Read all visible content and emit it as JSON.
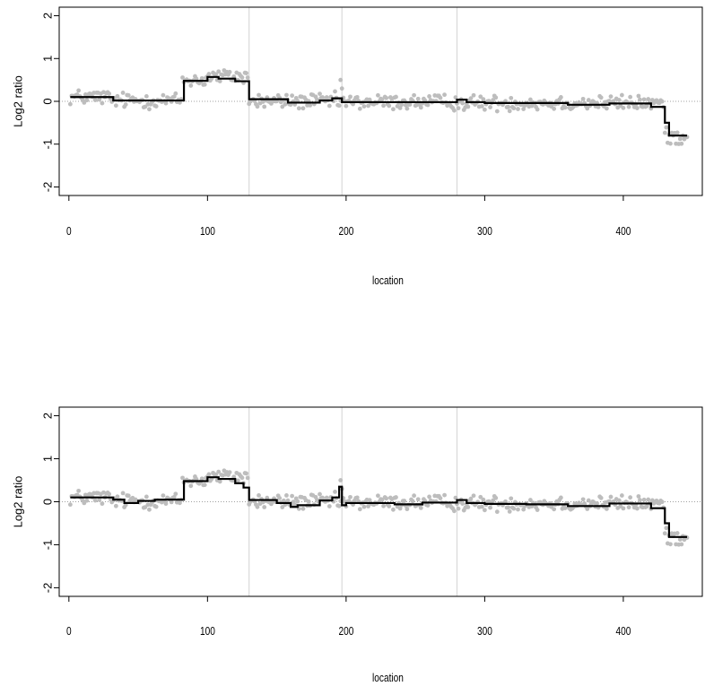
{
  "colors": {
    "points": "#bdbdbd",
    "segments": "#000000",
    "boundaries": "#d9d9d9",
    "zero_line": "#a0a0a0",
    "axes": "#000000"
  },
  "chart_data": [
    {
      "type": "scatter",
      "title": "",
      "xlabel": "location",
      "ylabel": "Log2 ratio",
      "xlim": [
        -7,
        457
      ],
      "ylim": [
        -2.2,
        2.2
      ],
      "xticks": [
        0,
        100,
        200,
        300,
        400
      ],
      "yticks": [
        -2,
        -1,
        0,
        1,
        2
      ],
      "grid": false,
      "n_points": 446,
      "chromosome_boundaries": [
        130,
        197,
        280
      ],
      "reference_line": 0,
      "point_baseline": [
        {
          "x0": 1,
          "x1": 30,
          "y": 0.1
        },
        {
          "x0": 30,
          "x1": 82,
          "y": 0.02
        },
        {
          "x0": 82,
          "x1": 100,
          "y": 0.5
        },
        {
          "x0": 100,
          "x1": 130,
          "y": 0.58
        },
        {
          "x0": 130,
          "x1": 197,
          "y": 0.0
        },
        {
          "x0": 197,
          "x1": 280,
          "y": -0.02
        },
        {
          "x0": 280,
          "x1": 430,
          "y": -0.04
        },
        {
          "x0": 430,
          "x1": 446,
          "y": -0.82
        }
      ],
      "highlight_points": [
        [
          196,
          0.5
        ],
        [
          197,
          0.3
        ]
      ],
      "segments": [
        {
          "x0": 1,
          "x1": 32,
          "y": 0.1
        },
        {
          "x0": 32,
          "x1": 83,
          "y": 0.02
        },
        {
          "x0": 83,
          "x1": 100,
          "y": 0.48
        },
        {
          "x0": 100,
          "x1": 108,
          "y": 0.57
        },
        {
          "x0": 108,
          "x1": 120,
          "y": 0.53
        },
        {
          "x0": 120,
          "x1": 130,
          "y": 0.47
        },
        {
          "x0": 130,
          "x1": 158,
          "y": 0.05
        },
        {
          "x0": 158,
          "x1": 181,
          "y": -0.03
        },
        {
          "x0": 181,
          "x1": 190,
          "y": 0.02
        },
        {
          "x0": 190,
          "x1": 197,
          "y": 0.07
        },
        {
          "x0": 197,
          "x1": 280,
          "y": -0.02
        },
        {
          "x0": 280,
          "x1": 287,
          "y": 0.04
        },
        {
          "x0": 287,
          "x1": 300,
          "y": -0.02
        },
        {
          "x0": 300,
          "x1": 360,
          "y": -0.04
        },
        {
          "x0": 360,
          "x1": 390,
          "y": -0.08
        },
        {
          "x0": 390,
          "x1": 420,
          "y": -0.05
        },
        {
          "x0": 420,
          "x1": 430,
          "y": -0.13
        },
        {
          "x0": 430,
          "x1": 433,
          "y": -0.5
        },
        {
          "x0": 433,
          "x1": 446,
          "y": -0.8
        }
      ]
    },
    {
      "type": "scatter",
      "title": "",
      "xlabel": "location",
      "ylabel": "Log2 ratio",
      "xlim": [
        -7,
        457
      ],
      "ylim": [
        -2.2,
        2.2
      ],
      "xticks": [
        0,
        100,
        200,
        300,
        400
      ],
      "yticks": [
        -2,
        -1,
        0,
        1,
        2
      ],
      "grid": false,
      "n_points": 446,
      "chromosome_boundaries": [
        130,
        197,
        280
      ],
      "reference_line": 0,
      "point_baseline": [
        {
          "x0": 1,
          "x1": 30,
          "y": 0.1
        },
        {
          "x0": 30,
          "x1": 82,
          "y": 0.02
        },
        {
          "x0": 82,
          "x1": 100,
          "y": 0.5
        },
        {
          "x0": 100,
          "x1": 130,
          "y": 0.58
        },
        {
          "x0": 130,
          "x1": 197,
          "y": 0.0
        },
        {
          "x0": 197,
          "x1": 280,
          "y": -0.02
        },
        {
          "x0": 280,
          "x1": 430,
          "y": -0.04
        },
        {
          "x0": 430,
          "x1": 446,
          "y": -0.82
        }
      ],
      "highlight_points": [
        [
          196,
          0.5
        ],
        [
          197,
          0.3
        ]
      ],
      "segments": [
        {
          "x0": 1,
          "x1": 32,
          "y": 0.1
        },
        {
          "x0": 32,
          "x1": 40,
          "y": 0.05
        },
        {
          "x0": 40,
          "x1": 50,
          "y": -0.03
        },
        {
          "x0": 50,
          "x1": 62,
          "y": 0.02
        },
        {
          "x0": 62,
          "x1": 83,
          "y": 0.05
        },
        {
          "x0": 83,
          "x1": 100,
          "y": 0.48
        },
        {
          "x0": 100,
          "x1": 108,
          "y": 0.57
        },
        {
          "x0": 108,
          "x1": 120,
          "y": 0.53
        },
        {
          "x0": 120,
          "x1": 126,
          "y": 0.43
        },
        {
          "x0": 126,
          "x1": 130,
          "y": 0.33
        },
        {
          "x0": 130,
          "x1": 150,
          "y": 0.04
        },
        {
          "x0": 150,
          "x1": 160,
          "y": -0.03
        },
        {
          "x0": 160,
          "x1": 165,
          "y": -0.12
        },
        {
          "x0": 165,
          "x1": 181,
          "y": -0.08
        },
        {
          "x0": 181,
          "x1": 190,
          "y": 0.03
        },
        {
          "x0": 190,
          "x1": 195,
          "y": 0.1
        },
        {
          "x0": 195,
          "x1": 197,
          "y": 0.35
        },
        {
          "x0": 197,
          "x1": 200,
          "y": -0.08
        },
        {
          "x0": 200,
          "x1": 235,
          "y": -0.03
        },
        {
          "x0": 235,
          "x1": 255,
          "y": -0.06
        },
        {
          "x0": 255,
          "x1": 280,
          "y": -0.02
        },
        {
          "x0": 280,
          "x1": 287,
          "y": 0.04
        },
        {
          "x0": 287,
          "x1": 300,
          "y": -0.03
        },
        {
          "x0": 300,
          "x1": 330,
          "y": -0.05
        },
        {
          "x0": 330,
          "x1": 360,
          "y": -0.06
        },
        {
          "x0": 360,
          "x1": 390,
          "y": -0.1
        },
        {
          "x0": 390,
          "x1": 420,
          "y": -0.04
        },
        {
          "x0": 420,
          "x1": 430,
          "y": -0.15
        },
        {
          "x0": 430,
          "x1": 433,
          "y": -0.5
        },
        {
          "x0": 433,
          "x1": 446,
          "y": -0.82
        }
      ]
    }
  ]
}
